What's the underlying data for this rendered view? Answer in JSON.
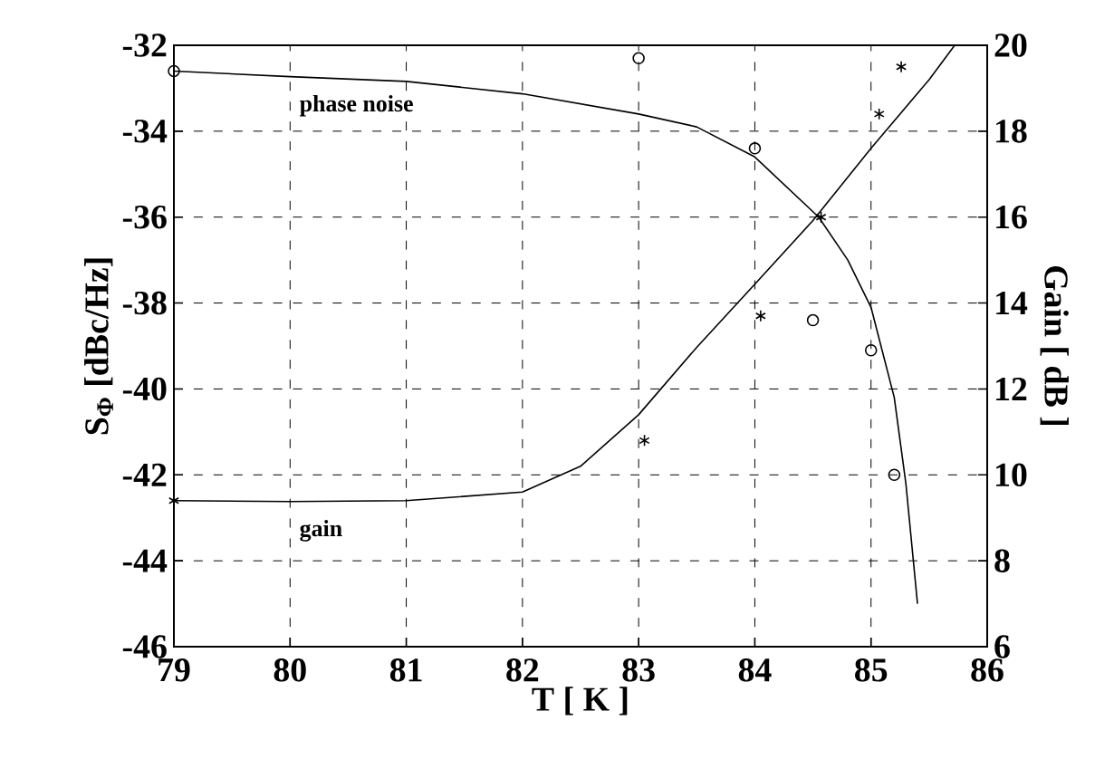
{
  "chart_data": {
    "type": "line",
    "xlabel": "T [ K ]",
    "ylabel": "S$_{Φ}$ [dBc/Hz]",
    "y2label": "Gain [ dB ]",
    "xlim": [
      79,
      86
    ],
    "xticks": [
      79,
      80,
      81,
      82,
      83,
      84,
      85,
      86
    ],
    "ylim": [
      -46,
      -32
    ],
    "yticks": [
      -46,
      -44,
      -42,
      -40,
      -38,
      -36,
      -34,
      -32
    ],
    "y2lim": [
      6,
      20
    ],
    "y2ticks": [
      6,
      8,
      10,
      12,
      14,
      16,
      18,
      20
    ],
    "grid": true,
    "series": [
      {
        "name": "phase noise",
        "color": "#000000",
        "x": [
          79,
          80,
          81,
          82,
          83,
          83.5,
          84,
          84.55,
          84.8,
          85,
          85.2,
          85.3,
          85.4
        ],
        "values": [
          -32.6,
          -32.73,
          -32.84,
          -33.13,
          -33.6,
          -33.9,
          -34.6,
          -36,
          -37,
          -38.1,
          -40.2,
          -42.2,
          -45
        ]
      },
      {
        "type": "scatter",
        "marker": "circle",
        "color": "#000000",
        "x": [
          79,
          83,
          84,
          84.5,
          85,
          85.2
        ],
        "values": [
          -32.6,
          -32.3,
          -34.4,
          -38.4,
          -39.1,
          -42
        ]
      },
      {
        "name": "gain",
        "axis": "y2",
        "color": "#000000",
        "x": [
          79,
          80,
          81,
          82,
          82.5,
          83,
          83.5,
          84,
          84.5,
          85,
          85.5,
          85.72
        ],
        "values": [
          9.4,
          9.38,
          9.4,
          9.6,
          10.2,
          11.4,
          12.97,
          14.44,
          15.92,
          17.6,
          19.2,
          20
        ]
      },
      {
        "type": "scatter",
        "marker": "cross",
        "axis": "y2",
        "color": "#000000",
        "x": [
          79,
          83.05,
          84.05,
          84.57,
          85.07,
          85.26
        ],
        "values": [
          9.4,
          10.8,
          13.7,
          16,
          18.4,
          19.5
        ]
      }
    ]
  }
}
